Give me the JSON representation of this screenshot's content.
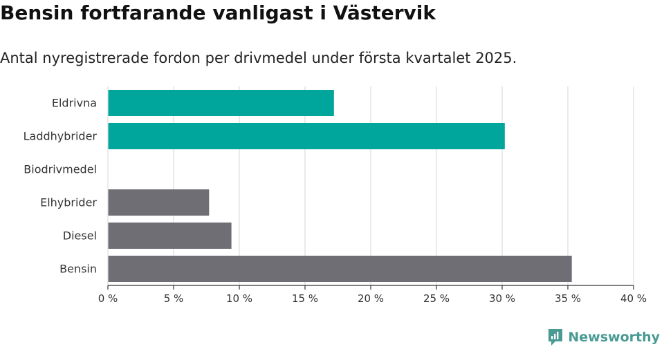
{
  "title": "Bensin fortfarande vanligast i Västervik",
  "subtitle": "Antal nyregistrerade fordon per drivmedel under första kvartalet 2025.",
  "brand": {
    "name": "Newsworthy",
    "color": "#4a9a94"
  },
  "chart_data": {
    "type": "bar",
    "orientation": "horizontal",
    "categories": [
      "Eldrivna",
      "Laddhybrider",
      "Biodrivmedel",
      "Elhybrider",
      "Diesel",
      "Bensin"
    ],
    "values": [
      17.2,
      30.2,
      0,
      7.7,
      9.4,
      35.3
    ],
    "colors": [
      "#00a59b",
      "#00a59b",
      "#00a59b",
      "#6f6e75",
      "#6f6e75",
      "#6f6e75"
    ],
    "xlim": [
      0,
      40
    ],
    "ticks": [
      0,
      5,
      10,
      15,
      20,
      25,
      30,
      35,
      40
    ],
    "tick_labels": [
      "0 %",
      "5 %",
      "10 %",
      "15 %",
      "20 %",
      "25 %",
      "30 %",
      "35 %",
      "40 %"
    ],
    "grid": true
  }
}
